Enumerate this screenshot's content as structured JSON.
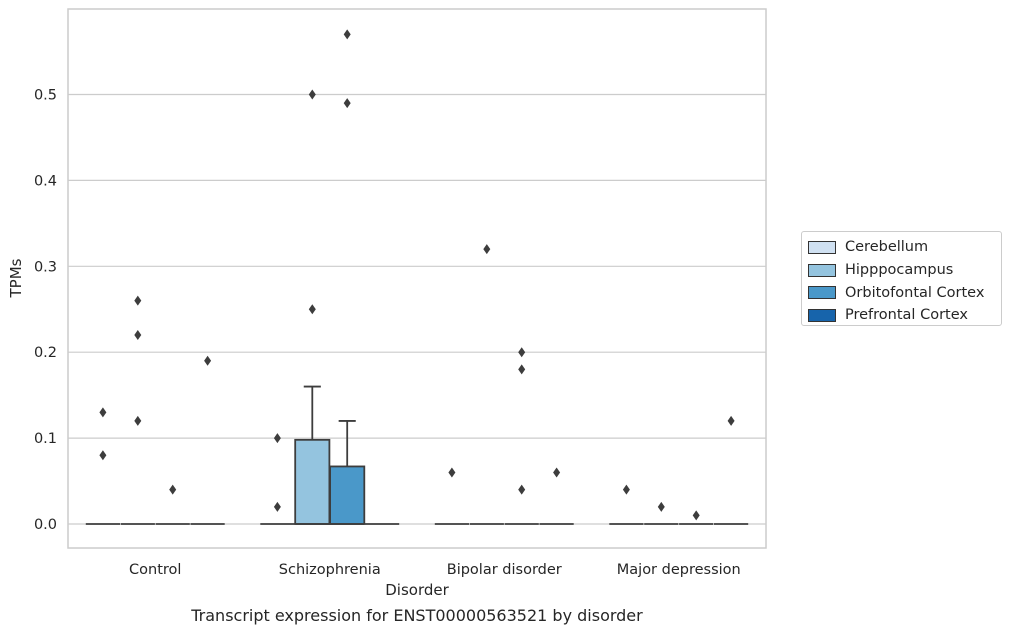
{
  "chart_data": {
    "type": "box",
    "xlabel": "Disorder",
    "ylabel": "TPMs",
    "caption": "Transcript expression for ENST00000563521 by disorder",
    "categories": [
      "Control",
      "Schizophrenia",
      "Bipolar disorder",
      "Major depression"
    ],
    "y_ticks": [
      "0.0",
      "0.1",
      "0.2",
      "0.3",
      "0.4",
      "0.5"
    ],
    "ylim": [
      -0.028,
      0.598
    ],
    "grid": "horizontal",
    "legend_position": "right",
    "series": [
      {
        "name": "Cerebellum",
        "color": "#d0e1f2",
        "boxes": [
          {
            "category": "Control",
            "q1": 0,
            "median": 0,
            "q3": 0,
            "whislo": 0,
            "whishi": 0,
            "fliers": [
              0.13,
              0.08
            ]
          },
          {
            "category": "Schizophrenia",
            "q1": 0,
            "median": 0,
            "q3": 0,
            "whislo": 0,
            "whishi": 0,
            "fliers": [
              0.1,
              0.02
            ]
          },
          {
            "category": "Bipolar disorder",
            "q1": 0,
            "median": 0,
            "q3": 0,
            "whislo": 0,
            "whishi": 0,
            "fliers": [
              0.06
            ]
          },
          {
            "category": "Major depression",
            "q1": 0,
            "median": 0,
            "q3": 0,
            "whislo": 0,
            "whishi": 0,
            "fliers": [
              0.04
            ]
          }
        ]
      },
      {
        "name": "Hipppocampus",
        "color": "#94c4df",
        "boxes": [
          {
            "category": "Control",
            "q1": 0,
            "median": 0,
            "q3": 0,
            "whislo": 0,
            "whishi": 0,
            "fliers": [
              0.26,
              0.22,
              0.12
            ]
          },
          {
            "category": "Schizophrenia",
            "q1": 0,
            "median": 0,
            "q3": 0.098,
            "whislo": 0,
            "whishi": 0.16,
            "fliers": [
              0.5,
              0.25
            ]
          },
          {
            "category": "Bipolar disorder",
            "q1": 0,
            "median": 0,
            "q3": 0,
            "whislo": 0,
            "whishi": 0,
            "fliers": [
              0.32
            ]
          },
          {
            "category": "Major depression",
            "q1": 0,
            "median": 0,
            "q3": 0,
            "whislo": 0,
            "whishi": 0,
            "fliers": [
              0.02
            ]
          }
        ]
      },
      {
        "name": "Orbitofontal Cortex",
        "color": "#4a98c9",
        "boxes": [
          {
            "category": "Control",
            "q1": 0,
            "median": 0,
            "q3": 0,
            "whislo": 0,
            "whishi": 0,
            "fliers": [
              0.04
            ]
          },
          {
            "category": "Schizophrenia",
            "q1": 0,
            "median": 0,
            "q3": 0.067,
            "whislo": 0,
            "whishi": 0.12,
            "fliers": [
              0.57,
              0.49
            ]
          },
          {
            "category": "Bipolar disorder",
            "q1": 0,
            "median": 0,
            "q3": 0,
            "whislo": 0,
            "whishi": 0,
            "fliers": [
              0.2,
              0.18,
              0.04
            ]
          },
          {
            "category": "Major depression",
            "q1": 0,
            "median": 0,
            "q3": 0,
            "whislo": 0,
            "whishi": 0,
            "fliers": [
              0.01
            ]
          }
        ]
      },
      {
        "name": "Prefrontal Cortex",
        "color": "#1764ab",
        "boxes": [
          {
            "category": "Control",
            "q1": 0,
            "median": 0,
            "q3": 0,
            "whislo": 0,
            "whishi": 0,
            "fliers": [
              0.19
            ]
          },
          {
            "category": "Schizophrenia",
            "q1": 0,
            "median": 0,
            "q3": 0,
            "whislo": 0,
            "whishi": 0,
            "fliers": []
          },
          {
            "category": "Bipolar disorder",
            "q1": 0,
            "median": 0,
            "q3": 0,
            "whislo": 0,
            "whishi": 0,
            "fliers": [
              0.06
            ]
          },
          {
            "category": "Major depression",
            "q1": 0,
            "median": 0,
            "q3": 0,
            "whislo": 0,
            "whishi": 0,
            "fliers": [
              0.12
            ]
          }
        ]
      }
    ]
  }
}
